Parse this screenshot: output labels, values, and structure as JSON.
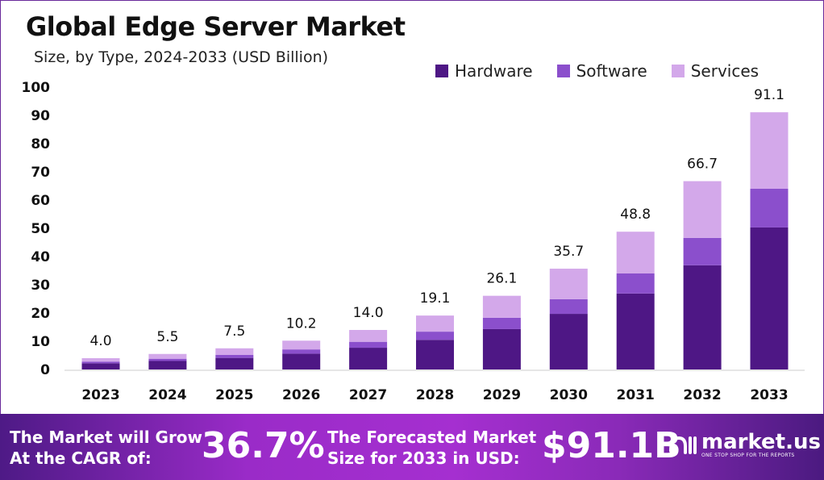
{
  "chart_data": {
    "type": "bar",
    "stacked": true,
    "title": "Global Edge Server Market",
    "subtitle": "Size, by Type, 2024-2033 (USD Billion)",
    "xlabel": "",
    "ylabel": "",
    "ylim": [
      0,
      100
    ],
    "yticks": [
      0,
      10,
      20,
      30,
      40,
      50,
      60,
      70,
      80,
      90,
      100
    ],
    "categories": [
      "2023",
      "2024",
      "2025",
      "2026",
      "2027",
      "2028",
      "2029",
      "2030",
      "2031",
      "2032",
      "2033"
    ],
    "series": [
      {
        "name": "Hardware",
        "color": "#4e1785",
        "values": [
          2.2,
          3.0,
          4.1,
          5.6,
          7.7,
          10.5,
          14.3,
          19.7,
          26.9,
          36.9,
          50.3
        ]
      },
      {
        "name": "Software",
        "color": "#8b4fcc",
        "values": [
          0.6,
          0.8,
          1.1,
          1.5,
          2.1,
          2.9,
          4.0,
          5.2,
          7.1,
          9.7,
          13.7
        ]
      },
      {
        "name": "Services",
        "color": "#d3a8ea",
        "values": [
          1.2,
          1.7,
          2.3,
          3.1,
          4.2,
          5.7,
          7.8,
          10.8,
          14.8,
          20.1,
          27.1
        ]
      }
    ],
    "totals": [
      "4.0",
      "5.5",
      "7.5",
      "10.2",
      "14.0",
      "19.1",
      "26.1",
      "35.7",
      "48.8",
      "66.7",
      "91.1"
    ],
    "legend_position": "top-right",
    "grid": false
  },
  "banner": {
    "cagr_label_1": "The Market will Grow",
    "cagr_label_2": "At the CAGR of:",
    "cagr_value": "36.7%",
    "forecast_label_1": "The Forecasted Market",
    "forecast_label_2": "Size for 2033 in USD:",
    "forecast_value": "$91.1B",
    "logo_name": "market.us",
    "logo_tagline": "ONE STOP SHOP FOR THE REPORTS"
  }
}
